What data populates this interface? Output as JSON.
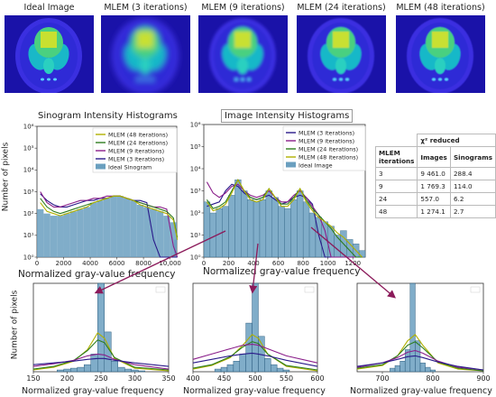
{
  "reconstruction_titles": [
    "Ideal Image",
    "MLEM (3 iterations)",
    "MLEM (9 iterations)",
    "MLEM (24 iterations)",
    "MLEM (48 iterations)"
  ],
  "colors": {
    "mlem48": "#b0b000",
    "mlem24": "#2e7d1e",
    "mlem9": "#8a1e8a",
    "mlem3": "#2a1a8a",
    "ideal_fill": "#6a9fbf",
    "arrow": "#8b1a5a",
    "phantom_bg": "#2a22c8"
  },
  "chi_table": {
    "header": "χ² reduced",
    "col_labels": [
      "MLEM iterations",
      "Images",
      "Sinograms"
    ],
    "rows": [
      [
        "3",
        "9 461.0",
        "288.4"
      ],
      [
        "9",
        "1 769.3",
        "114.0"
      ],
      [
        "24",
        "557.0",
        "6.2"
      ],
      [
        "48",
        "1 274.1",
        "2.7"
      ]
    ]
  },
  "chart_data": [
    {
      "type": "area",
      "title": "Sinogram Intensity Histograms",
      "xlabel": "Normalized gray-value frequency",
      "ylabel": "Number of pixels",
      "xlim": [
        0,
        10500
      ],
      "ylim_log": [
        0,
        6
      ],
      "log_y": true,
      "xticks": [
        "0",
        "2000",
        "4000",
        "6000",
        "8000",
        "10,000"
      ],
      "yticks": [
        "10⁰",
        "10¹",
        "10²",
        "10³",
        "10⁴",
        "10⁵",
        "10⁶"
      ],
      "legend": [
        "MLEM (48 iterations)",
        "MLEM (24 iterations)",
        "MLEM (9 iterations)",
        "MLEM (3 iterations)",
        "Ideal Sinogram"
      ],
      "legend_position": "top-right",
      "x": [
        0,
        500,
        1000,
        1500,
        2000,
        2500,
        3000,
        3500,
        4000,
        4500,
        5000,
        5500,
        6000,
        6500,
        7000,
        7500,
        8000,
        8500,
        9000,
        9500,
        10000,
        10300
      ],
      "series": [
        {
          "name": "Ideal Sinogram",
          "values": [
            2.2,
            2.0,
            1.9,
            1.9,
            2.0,
            2.1,
            2.2,
            2.3,
            2.5,
            2.6,
            2.7,
            2.8,
            2.8,
            2.7,
            2.6,
            2.4,
            2.3,
            2.2,
            2.1,
            1.9,
            1.6,
            0.8
          ]
        },
        {
          "name": "MLEM (3 iterations)",
          "values": [
            2.9,
            2.6,
            2.4,
            2.3,
            2.3,
            2.4,
            2.5,
            2.6,
            2.6,
            2.7,
            2.7,
            2.8,
            2.8,
            2.7,
            2.6,
            2.6,
            2.5,
            0.8,
            0.0,
            0.0,
            0.0,
            0.0
          ]
        },
        {
          "name": "MLEM (9 iterations)",
          "values": [
            3.0,
            2.5,
            2.3,
            2.3,
            2.4,
            2.5,
            2.6,
            2.6,
            2.7,
            2.7,
            2.8,
            2.8,
            2.8,
            2.7,
            2.6,
            2.5,
            2.4,
            2.3,
            2.3,
            2.2,
            0.5,
            0.0
          ]
        },
        {
          "name": "MLEM (24 iterations)",
          "values": [
            2.7,
            2.3,
            2.1,
            2.0,
            2.1,
            2.2,
            2.3,
            2.4,
            2.5,
            2.6,
            2.7,
            2.8,
            2.8,
            2.7,
            2.6,
            2.5,
            2.4,
            2.3,
            2.2,
            2.1,
            1.8,
            0.9
          ]
        },
        {
          "name": "MLEM (48 iterations)",
          "values": [
            2.5,
            2.1,
            2.0,
            1.9,
            2.0,
            2.1,
            2.2,
            2.3,
            2.5,
            2.6,
            2.7,
            2.8,
            2.8,
            2.7,
            2.6,
            2.4,
            2.3,
            2.2,
            2.1,
            2.0,
            1.7,
            0.8
          ]
        }
      ]
    },
    {
      "type": "line",
      "title": "Image Intensity Histograms",
      "xlabel": "Normalized gray-value frequency",
      "ylabel": "",
      "xlim": [
        0,
        1300
      ],
      "ylim_log": [
        0,
        6
      ],
      "log_y": true,
      "xticks": [
        "0",
        "200",
        "400",
        "600",
        "800",
        "1000",
        "1200"
      ],
      "yticks": [
        "10⁰",
        "10¹",
        "10²",
        "10³",
        "10⁴",
        "10⁵",
        "10⁶"
      ],
      "legend": [
        "MLEM (3 iterations)",
        "MLEM (9 iterations)",
        "MLEM (24 iterations)",
        "MLEM (48 iterations)",
        "Ideal Image"
      ],
      "legend_position": "top-right",
      "x": [
        0,
        50,
        100,
        150,
        200,
        250,
        300,
        350,
        400,
        450,
        500,
        550,
        600,
        650,
        700,
        750,
        800,
        850,
        900,
        950,
        1000,
        1050,
        1100,
        1150,
        1200,
        1250
      ],
      "series": [
        {
          "name": "Ideal Image",
          "values": [
            2.5,
            2.0,
            2.2,
            2.3,
            2.8,
            3.5,
            3.0,
            2.6,
            2.5,
            2.6,
            3.0,
            2.7,
            2.3,
            2.2,
            2.6,
            3.0,
            2.5,
            2.0,
            1.8,
            1.6,
            1.4,
            1.0,
            1.2,
            0.8,
            0.6,
            0.3
          ]
        },
        {
          "name": "MLEM (3 iterations)",
          "values": [
            2.3,
            2.4,
            2.5,
            3.0,
            3.3,
            3.2,
            2.9,
            2.7,
            2.6,
            2.7,
            2.8,
            2.6,
            2.4,
            2.5,
            2.7,
            2.8,
            2.7,
            2.4,
            1.0,
            0.0,
            0.0,
            0.0,
            0.0,
            0.0,
            0.0,
            0.0
          ]
        },
        {
          "name": "MLEM (9 iterations)",
          "values": [
            3.4,
            2.9,
            2.7,
            2.9,
            3.2,
            3.3,
            3.0,
            2.8,
            2.7,
            2.8,
            3.0,
            2.7,
            2.5,
            2.5,
            2.8,
            3.0,
            2.7,
            2.3,
            1.9,
            1.2,
            0.0,
            0.0,
            0.0,
            0.0,
            0.0,
            0.0
          ]
        },
        {
          "name": "MLEM (24 iterations)",
          "values": [
            2.6,
            2.2,
            2.3,
            2.5,
            3.0,
            3.5,
            3.0,
            2.7,
            2.6,
            2.7,
            3.1,
            2.7,
            2.4,
            2.4,
            2.7,
            3.1,
            2.6,
            2.2,
            1.9,
            1.6,
            1.3,
            0.9,
            0.6,
            0.3,
            0.0,
            0.0
          ]
        },
        {
          "name": "MLEM (48 iterations)",
          "values": [
            2.5,
            2.1,
            2.2,
            2.4,
            2.9,
            3.5,
            3.0,
            2.6,
            2.5,
            2.6,
            3.1,
            2.7,
            2.3,
            2.3,
            2.6,
            3.1,
            2.5,
            2.1,
            1.8,
            1.6,
            1.4,
            1.1,
            0.9,
            0.6,
            0.3,
            0.0
          ]
        }
      ]
    },
    {
      "type": "bar",
      "title": "",
      "xlabel": "Normalized gray-value frequency",
      "ylabel": "Number of pixels",
      "xlim": [
        150,
        350
      ],
      "xticks": [
        "150",
        "200",
        "250",
        "300",
        "350"
      ],
      "ylim": [
        0,
        1
      ],
      "bins_x": [
        190,
        200,
        210,
        220,
        230,
        240,
        250,
        260,
        270,
        280,
        290,
        300,
        310
      ],
      "bars": [
        0.02,
        0.03,
        0.04,
        0.05,
        0.08,
        0.2,
        1.0,
        0.45,
        0.12,
        0.05,
        0.03,
        0.02,
        0.01
      ],
      "series": [
        {
          "name": "MLEM (48 iterations)",
          "x": [
            150,
            180,
            210,
            230,
            245,
            255,
            270,
            300,
            350
          ],
          "values": [
            0.02,
            0.05,
            0.12,
            0.25,
            0.44,
            0.38,
            0.15,
            0.04,
            0.01
          ]
        },
        {
          "name": "MLEM (24 iterations)",
          "x": [
            150,
            180,
            210,
            230,
            245,
            255,
            270,
            300,
            350
          ],
          "values": [
            0.03,
            0.06,
            0.13,
            0.24,
            0.36,
            0.33,
            0.16,
            0.05,
            0.02
          ]
        },
        {
          "name": "MLEM (9 iterations)",
          "x": [
            150,
            180,
            210,
            230,
            245,
            255,
            270,
            300,
            350
          ],
          "values": [
            0.06,
            0.09,
            0.13,
            0.18,
            0.2,
            0.19,
            0.14,
            0.08,
            0.03
          ]
        },
        {
          "name": "MLEM (3 iterations)",
          "x": [
            150,
            180,
            210,
            230,
            245,
            255,
            270,
            300,
            350
          ],
          "values": [
            0.08,
            0.1,
            0.12,
            0.14,
            0.15,
            0.15,
            0.13,
            0.1,
            0.06
          ]
        }
      ]
    },
    {
      "type": "bar",
      "title": "",
      "xlabel": "Normalized gray-value frequency",
      "ylabel": "",
      "xlim": [
        400,
        600
      ],
      "xticks": [
        "400",
        "450",
        "500",
        "550",
        "600"
      ],
      "ylim": [
        0,
        1
      ],
      "bins_x": [
        440,
        450,
        460,
        470,
        480,
        490,
        500,
        510,
        520,
        530,
        540,
        550
      ],
      "bars": [
        0.03,
        0.05,
        0.08,
        0.12,
        0.2,
        0.55,
        1.0,
        0.4,
        0.15,
        0.08,
        0.04,
        0.02
      ],
      "series": [
        {
          "name": "MLEM (48 iterations)",
          "x": [
            400,
            430,
            460,
            480,
            495,
            505,
            520,
            550,
            600
          ],
          "values": [
            0.03,
            0.07,
            0.16,
            0.3,
            0.42,
            0.38,
            0.2,
            0.06,
            0.01
          ]
        },
        {
          "name": "MLEM (24 iterations)",
          "x": [
            400,
            430,
            460,
            480,
            495,
            505,
            520,
            550,
            600
          ],
          "values": [
            0.04,
            0.08,
            0.17,
            0.28,
            0.34,
            0.32,
            0.2,
            0.07,
            0.02
          ]
        },
        {
          "name": "MLEM (9 iterations)",
          "x": [
            400,
            430,
            460,
            480,
            495,
            505,
            520,
            550,
            600
          ],
          "values": [
            0.14,
            0.2,
            0.26,
            0.3,
            0.31,
            0.3,
            0.26,
            0.18,
            0.1
          ]
        },
        {
          "name": "MLEM (3 iterations)",
          "x": [
            400,
            430,
            460,
            480,
            495,
            505,
            520,
            550,
            600
          ],
          "values": [
            0.1,
            0.14,
            0.18,
            0.2,
            0.21,
            0.2,
            0.18,
            0.13,
            0.06
          ]
        }
      ]
    },
    {
      "type": "bar",
      "title": "",
      "xlabel": "Normalized gray-value frequency",
      "ylabel": "",
      "xlim": [
        650,
        900
      ],
      "xticks": [
        "700",
        "800",
        "900"
      ],
      "ylim": [
        0,
        1
      ],
      "bins_x": [
        720,
        730,
        740,
        750,
        760,
        770,
        780,
        790,
        800
      ],
      "bars": [
        0.04,
        0.07,
        0.12,
        0.25,
        1.0,
        0.35,
        0.1,
        0.05,
        0.02
      ],
      "series": [
        {
          "name": "MLEM (48 iterations)",
          "x": [
            650,
            700,
            730,
            750,
            765,
            780,
            810,
            850,
            900
          ],
          "values": [
            0.03,
            0.07,
            0.18,
            0.35,
            0.42,
            0.3,
            0.1,
            0.03,
            0.01
          ]
        },
        {
          "name": "MLEM (24 iterations)",
          "x": [
            650,
            700,
            730,
            750,
            765,
            780,
            810,
            850,
            900
          ],
          "values": [
            0.04,
            0.08,
            0.18,
            0.3,
            0.34,
            0.27,
            0.11,
            0.04,
            0.01
          ]
        },
        {
          "name": "MLEM (9 iterations)",
          "x": [
            650,
            700,
            730,
            750,
            765,
            780,
            810,
            850,
            900
          ],
          "values": [
            0.05,
            0.1,
            0.16,
            0.22,
            0.24,
            0.21,
            0.12,
            0.05,
            0.02
          ]
        },
        {
          "name": "MLEM (3 iterations)",
          "x": [
            650,
            700,
            730,
            750,
            765,
            780,
            810,
            850,
            900
          ],
          "values": [
            0.06,
            0.1,
            0.14,
            0.17,
            0.18,
            0.16,
            0.11,
            0.06,
            0.02
          ]
        }
      ]
    }
  ]
}
